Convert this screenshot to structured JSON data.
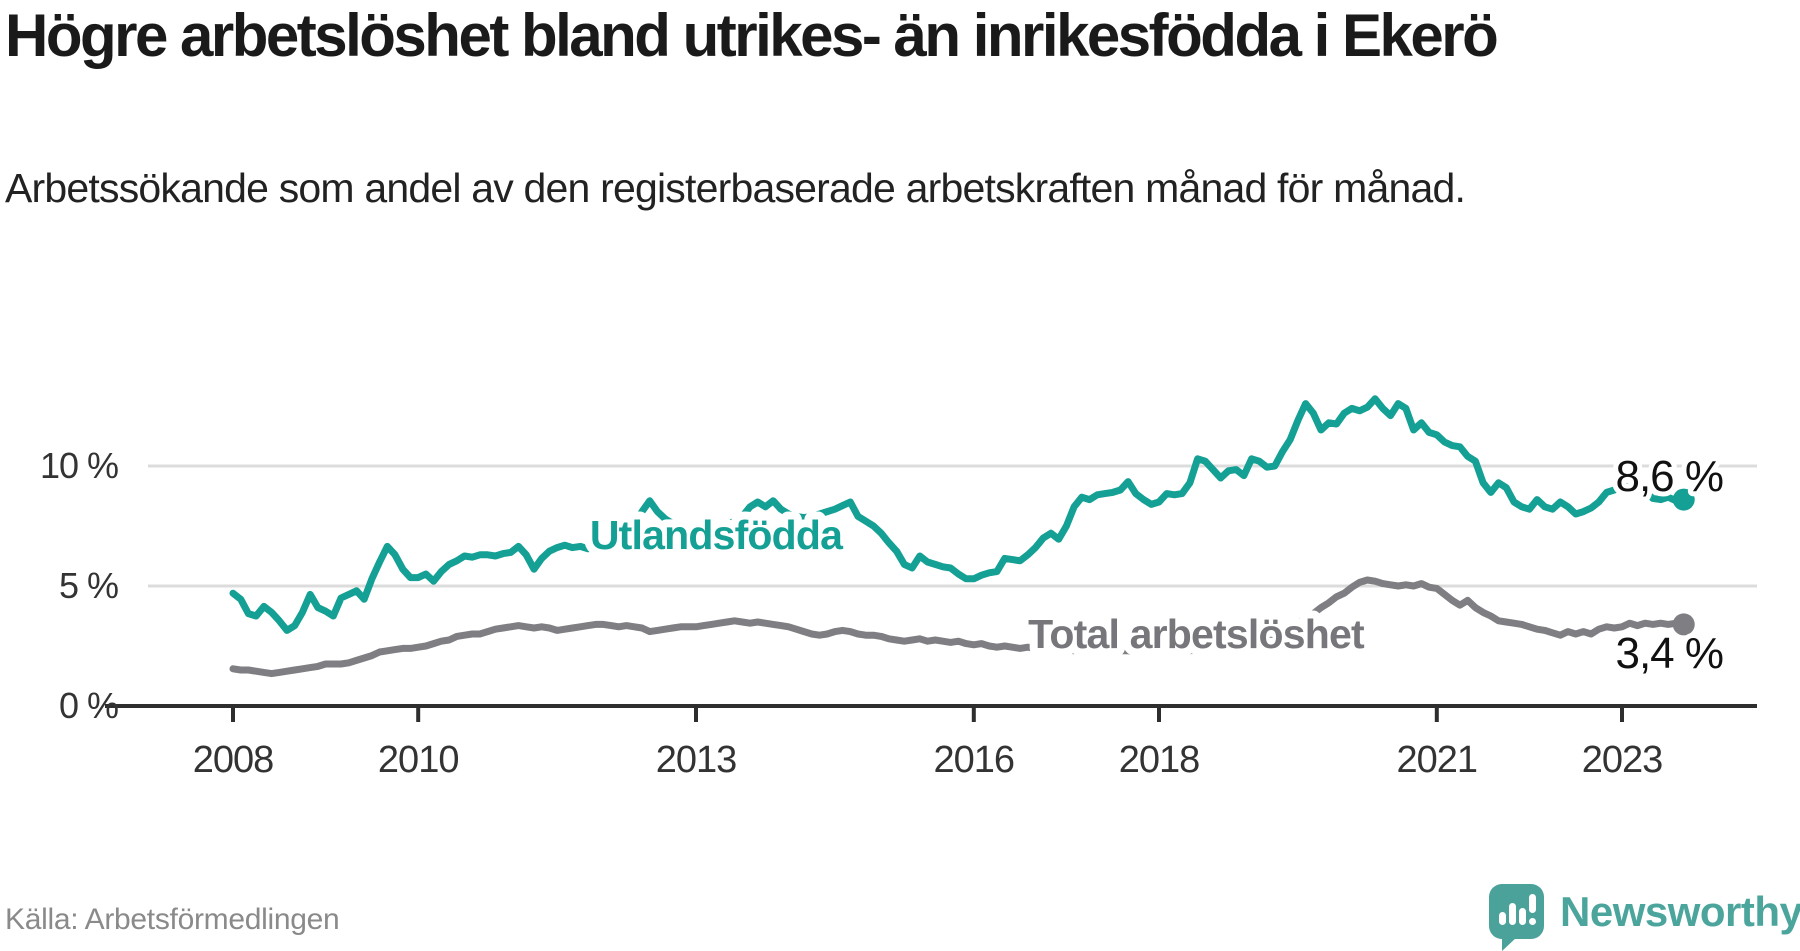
{
  "header": {
    "title": "Högre arbetslöshet bland utrikes- än inrikesfödda i Ekerö",
    "subtitle": "Arbetssökande som andel av den registerbaserade arbetskraften månad för månad."
  },
  "footer": {
    "source": "Källa: Arbetsförmedlingen",
    "brand": "Newsworthy"
  },
  "colors": {
    "series_utlandsfodda": "#14A094",
    "series_total": "#7E7E83",
    "gridline": "#DCDCDC",
    "axis": "#2E2E2E",
    "tick_text": "#333333",
    "value_text": "#111111",
    "brand_teal": "#4BA29A"
  },
  "chart_data": {
    "type": "line",
    "title": "Högre arbetslöshet bland utrikes- än inrikesfödda i Ekerö",
    "subtitle": "Arbetssökande som andel av den registerbaserade arbetskraften månad för månad.",
    "source": "Källa: Arbetsförmedlingen",
    "unit": "%",
    "frequency": "monthly",
    "x_start": "2008-01",
    "x_end": "2023-09",
    "x_tick_years": [
      2008,
      2010,
      2013,
      2016,
      2018,
      2021,
      2023
    ],
    "y_ticks": [
      {
        "value": 0,
        "label": "0 %"
      },
      {
        "value": 5,
        "label": "5 %"
      },
      {
        "value": 10,
        "label": "10 %"
      }
    ],
    "ylim": [
      0,
      13.6
    ],
    "grid": "horizontal",
    "legend_position": "inline-labels",
    "series": [
      {
        "name": "Utlandsfödda",
        "color": "#14A094",
        "end_label": "8,6 %",
        "last_value": 8.6,
        "values": [
          4.7,
          4.45,
          3.85,
          3.75,
          4.15,
          3.9,
          3.55,
          3.15,
          3.35,
          3.9,
          4.65,
          4.1,
          3.95,
          3.75,
          4.5,
          4.65,
          4.8,
          4.45,
          5.3,
          6.0,
          6.65,
          6.3,
          5.7,
          5.35,
          5.35,
          5.5,
          5.2,
          5.6,
          5.9,
          6.05,
          6.25,
          6.2,
          6.3,
          6.3,
          6.25,
          6.35,
          6.4,
          6.65,
          6.3,
          5.7,
          6.15,
          6.45,
          6.6,
          6.7,
          6.6,
          6.65,
          6.55,
          6.7,
          6.8,
          6.9,
          7.1,
          7.3,
          7.6,
          8.1,
          8.55,
          8.1,
          7.8,
          7.6,
          7.5,
          7.4,
          7.3,
          7.4,
          7.5,
          7.4,
          7.55,
          7.7,
          7.9,
          8.3,
          8.5,
          8.3,
          8.55,
          8.2,
          8.0,
          7.9,
          7.85,
          7.9,
          8.0,
          8.1,
          8.2,
          8.35,
          8.5,
          7.9,
          7.7,
          7.5,
          7.2,
          6.8,
          6.45,
          5.9,
          5.75,
          6.25,
          6.0,
          5.9,
          5.8,
          5.75,
          5.5,
          5.3,
          5.3,
          5.45,
          5.55,
          5.6,
          6.15,
          6.1,
          6.05,
          6.3,
          6.6,
          7.0,
          7.2,
          6.95,
          7.5,
          8.3,
          8.7,
          8.6,
          8.8,
          8.85,
          8.9,
          9.0,
          9.35,
          8.85,
          8.6,
          8.4,
          8.5,
          8.85,
          8.8,
          8.85,
          9.3,
          10.3,
          10.2,
          9.85,
          9.5,
          9.8,
          9.85,
          9.6,
          10.3,
          10.2,
          9.95,
          10.0,
          10.6,
          11.1,
          11.9,
          12.6,
          12.2,
          11.5,
          11.8,
          11.75,
          12.2,
          12.4,
          12.3,
          12.45,
          12.8,
          12.4,
          12.1,
          12.6,
          12.4,
          11.5,
          11.8,
          11.4,
          11.3,
          11.0,
          10.85,
          10.8,
          10.4,
          10.2,
          9.3,
          8.9,
          9.3,
          9.1,
          8.5,
          8.3,
          8.2,
          8.6,
          8.3,
          8.2,
          8.5,
          8.3,
          8.0,
          8.1,
          8.25,
          8.5,
          8.9,
          9.0,
          9.2,
          9.1,
          9.15,
          8.9,
          8.65,
          8.6,
          8.7,
          8.55,
          8.6
        ]
      },
      {
        "name": "Total arbetslöshet",
        "color": "#7E7E83",
        "end_label": "3,4 %",
        "last_value": 3.4,
        "values": [
          1.55,
          1.5,
          1.5,
          1.45,
          1.4,
          1.35,
          1.4,
          1.45,
          1.5,
          1.55,
          1.6,
          1.65,
          1.75,
          1.75,
          1.75,
          1.8,
          1.9,
          2.0,
          2.1,
          2.25,
          2.3,
          2.35,
          2.4,
          2.4,
          2.45,
          2.5,
          2.6,
          2.7,
          2.75,
          2.9,
          2.95,
          3.0,
          3.0,
          3.1,
          3.2,
          3.25,
          3.3,
          3.35,
          3.3,
          3.25,
          3.3,
          3.25,
          3.15,
          3.2,
          3.25,
          3.3,
          3.35,
          3.4,
          3.4,
          3.35,
          3.3,
          3.35,
          3.3,
          3.25,
          3.1,
          3.15,
          3.2,
          3.25,
          3.3,
          3.3,
          3.3,
          3.35,
          3.4,
          3.45,
          3.5,
          3.55,
          3.5,
          3.45,
          3.5,
          3.45,
          3.4,
          3.35,
          3.3,
          3.2,
          3.1,
          3.0,
          2.95,
          3.0,
          3.1,
          3.15,
          3.1,
          3.0,
          2.95,
          2.95,
          2.9,
          2.8,
          2.75,
          2.7,
          2.75,
          2.8,
          2.7,
          2.75,
          2.7,
          2.65,
          2.7,
          2.6,
          2.55,
          2.6,
          2.5,
          2.45,
          2.5,
          2.45,
          2.4,
          2.45,
          2.4,
          2.35,
          2.4,
          2.35,
          2.35,
          2.3,
          2.35,
          2.3,
          2.25,
          2.3,
          2.25,
          2.3,
          2.3,
          2.25,
          2.3,
          2.3,
          2.3,
          2.3,
          2.25,
          2.3,
          2.3,
          2.35,
          2.3,
          2.35,
          2.4,
          2.4,
          2.45,
          2.5,
          2.6,
          2.65,
          2.7,
          2.8,
          2.9,
          3.1,
          3.4,
          3.7,
          3.85,
          4.1,
          4.3,
          4.55,
          4.7,
          4.95,
          5.15,
          5.25,
          5.2,
          5.1,
          5.05,
          5.0,
          5.05,
          5.0,
          5.1,
          4.95,
          4.9,
          4.65,
          4.4,
          4.2,
          4.4,
          4.1,
          3.9,
          3.75,
          3.55,
          3.5,
          3.45,
          3.4,
          3.3,
          3.2,
          3.15,
          3.05,
          2.95,
          3.1,
          3.0,
          3.1,
          3.0,
          3.2,
          3.3,
          3.25,
          3.3,
          3.45,
          3.35,
          3.45,
          3.4,
          3.45,
          3.4,
          3.45,
          3.4
        ]
      }
    ]
  }
}
